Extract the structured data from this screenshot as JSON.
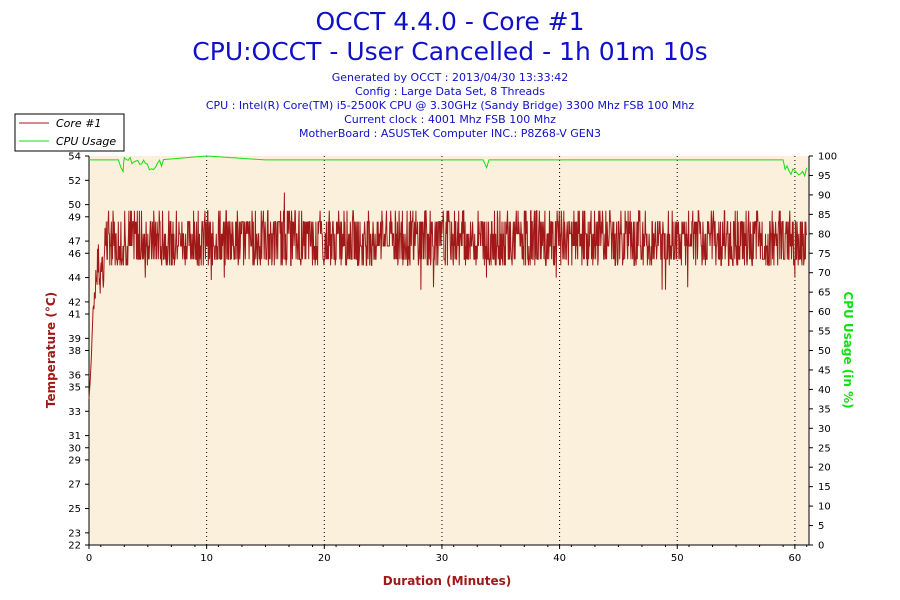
{
  "chart_data": {
    "type": "line",
    "title": "OCCT 4.4.0 - Core #1",
    "subtitle": "CPU:OCCT - User Cancelled - 1h 01m 10s",
    "info_lines": [
      "Generated by OCCT : 2013/04/30 13:33:42",
      "Config : Large Data Set, 8 Threads",
      "CPU : Intel(R) Core(TM) i5-2500K CPU @ 3.30GHz (Sandy Bridge) 3300 Mhz FSB 100 Mhz",
      "Current clock : 4001 Mhz FSB 100 Mhz",
      "MotherBoard : ASUSTeK Computer INC.: P8Z68-V GEN3"
    ],
    "xlabel": "Duration (Minutes)",
    "ylabel_left": "Temperature (°C)",
    "ylabel_right": "CPU Usage (in %)",
    "xlim": [
      0,
      61.2
    ],
    "ylim_left": [
      22,
      54
    ],
    "ylim_right": [
      0,
      100
    ],
    "x_ticks": [
      0,
      10,
      20,
      30,
      40,
      50,
      60
    ],
    "y_left_ticks": [
      22,
      23,
      25,
      27,
      29,
      30,
      31,
      33,
      35,
      36,
      38,
      39,
      41,
      42,
      44,
      46,
      47,
      49,
      50,
      52,
      54
    ],
    "y_right_ticks": [
      0,
      5,
      10,
      15,
      20,
      25,
      30,
      35,
      40,
      45,
      50,
      55,
      60,
      65,
      70,
      75,
      80,
      85,
      90,
      95,
      100
    ],
    "legend_position": "top-left",
    "grid": true,
    "colors": {
      "temperature": "#a01818",
      "cpu_usage": "#11e011",
      "plot_bg": "#fbf0dc",
      "title": "#1010c8"
    },
    "series": [
      {
        "name": "Core #1",
        "axis": "left",
        "points": [
          [
            0.0,
            34.0
          ],
          [
            0.1,
            35.5
          ],
          [
            0.2,
            37.5
          ],
          [
            0.35,
            41.5
          ],
          [
            0.5,
            43.0
          ],
          [
            0.65,
            44.5
          ],
          [
            0.8,
            45.5
          ],
          [
            0.95,
            43.0
          ],
          [
            1.1,
            46.5
          ],
          [
            1.25,
            44.0
          ],
          [
            1.4,
            47.5
          ],
          [
            1.6,
            49.0
          ],
          [
            1.8,
            47.0
          ],
          [
            2.0,
            48.5
          ],
          [
            2.3,
            47.5
          ],
          [
            2.6,
            48.0
          ],
          [
            3.0,
            47.5
          ],
          [
            3.5,
            48.0
          ],
          [
            4.0,
            47.0
          ],
          [
            4.5,
            48.0
          ],
          [
            5.0,
            47.5
          ],
          [
            5.5,
            47.0
          ],
          [
            6.0,
            48.0
          ],
          [
            6.5,
            47.5
          ],
          [
            7.0,
            48.0
          ],
          [
            8.0,
            47.5
          ],
          [
            9.0,
            47.5
          ],
          [
            10.0,
            48.0
          ],
          [
            11.0,
            47.5
          ],
          [
            12.0,
            47.5
          ],
          [
            13.0,
            48.0
          ],
          [
            14.0,
            47.5
          ],
          [
            15.0,
            47.5
          ],
          [
            16.0,
            48.0
          ],
          [
            17.0,
            48.5
          ],
          [
            18.0,
            47.5
          ],
          [
            19.0,
            47.5
          ],
          [
            20.0,
            48.0
          ],
          [
            21.0,
            47.5
          ],
          [
            22.0,
            47.5
          ],
          [
            23.0,
            48.0
          ],
          [
            24.0,
            47.5
          ],
          [
            25.0,
            47.5
          ],
          [
            26.0,
            48.0
          ],
          [
            27.0,
            47.5
          ],
          [
            28.0,
            47.5
          ],
          [
            29.0,
            48.0
          ],
          [
            30.0,
            47.5
          ],
          [
            31.0,
            47.5
          ],
          [
            32.0,
            48.0
          ],
          [
            33.0,
            47.5
          ],
          [
            34.0,
            47.5
          ],
          [
            35.0,
            48.0
          ],
          [
            36.0,
            47.5
          ],
          [
            37.0,
            47.5
          ],
          [
            38.0,
            48.0
          ],
          [
            39.0,
            47.5
          ],
          [
            40.0,
            47.5
          ],
          [
            41.0,
            48.0
          ],
          [
            42.0,
            47.5
          ],
          [
            43.0,
            47.5
          ],
          [
            44.0,
            48.0
          ],
          [
            45.0,
            47.5
          ],
          [
            46.0,
            47.5
          ],
          [
            47.0,
            48.0
          ],
          [
            48.0,
            47.5
          ],
          [
            49.0,
            47.5
          ],
          [
            50.0,
            48.0
          ],
          [
            51.0,
            47.5
          ],
          [
            52.0,
            47.5
          ],
          [
            53.0,
            48.0
          ],
          [
            54.0,
            47.5
          ],
          [
            55.0,
            47.5
          ],
          [
            56.0,
            48.0
          ],
          [
            57.0,
            47.5
          ],
          [
            58.0,
            47.5
          ],
          [
            59.0,
            48.0
          ],
          [
            60.0,
            47.5
          ],
          [
            61.0,
            47.5
          ]
        ],
        "fluctuation": {
          "low": 45.0,
          "high": 49.5,
          "dips": [
            [
              4.8,
              44.0
            ],
            [
              10.4,
              43.8
            ],
            [
              11.5,
              44.0
            ],
            [
              16.6,
              51.0
            ],
            [
              28.2,
              43.0
            ],
            [
              29.3,
              43.2
            ],
            [
              33.8,
              44.0
            ],
            [
              39.7,
              44.0
            ],
            [
              48.7,
              43.0
            ],
            [
              49.0,
              43.0
            ],
            [
              50.9,
              43.2
            ],
            [
              60.0,
              44.0
            ]
          ]
        }
      },
      {
        "name": "CPU Usage",
        "axis": "right",
        "points": [
          [
            0.0,
            99
          ],
          [
            2.5,
            99
          ],
          [
            2.9,
            97
          ],
          [
            3.0,
            100
          ],
          [
            4.8,
            99
          ],
          [
            5.3,
            97
          ],
          [
            6.0,
            99
          ],
          [
            10.0,
            100
          ],
          [
            15.0,
            99
          ],
          [
            20.0,
            99
          ],
          [
            25.0,
            99
          ],
          [
            33.5,
            99
          ],
          [
            33.8,
            97
          ],
          [
            34.0,
            99
          ],
          [
            40.0,
            99
          ],
          [
            45.0,
            99
          ],
          [
            50.0,
            99
          ],
          [
            55.0,
            99
          ],
          [
            59.0,
            99
          ],
          [
            59.5,
            97
          ],
          [
            60.0,
            97
          ],
          [
            60.5,
            96
          ],
          [
            61.0,
            97
          ]
        ]
      }
    ]
  }
}
